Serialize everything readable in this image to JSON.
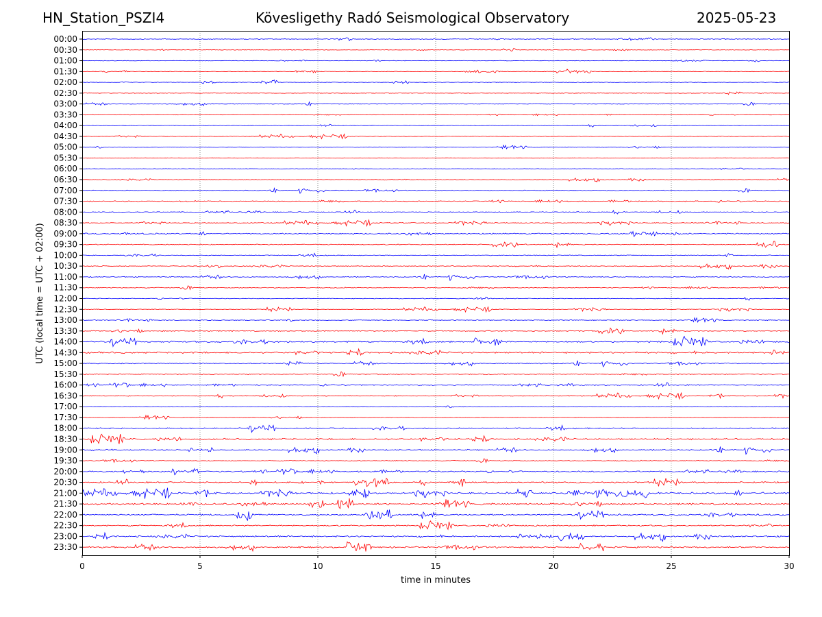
{
  "header": {
    "station": "HN_Station_PSZI4",
    "observatory": "Kövesligethy Radó Seismological Observatory",
    "date": "2025-05-23"
  },
  "chart_data": {
    "type": "line",
    "title": "Kövesligethy Radó Seismological Observatory",
    "xlabel": "time in minutes",
    "ylabel": "UTC (local time = UTC + 02:00)",
    "xlim": [
      0,
      30
    ],
    "xticks": [
      "0",
      "5",
      "10",
      "15",
      "20",
      "25",
      "30"
    ],
    "grid": "vertical dotted lines at 5-minute intervals",
    "series_colors": [
      "#0000ff",
      "#ff0000"
    ],
    "rows": [
      {
        "label": "00:00",
        "color": "#0000ff",
        "activity": 0.15
      },
      {
        "label": "00:30",
        "color": "#ff0000",
        "activity": 0.05
      },
      {
        "label": "01:00",
        "color": "#0000ff",
        "activity": 0.05
      },
      {
        "label": "01:30",
        "color": "#ff0000",
        "activity": 0.05
      },
      {
        "label": "02:00",
        "color": "#0000ff",
        "activity": 0.05
      },
      {
        "label": "02:30",
        "color": "#ff0000",
        "activity": 0.07
      },
      {
        "label": "03:00",
        "color": "#0000ff",
        "activity": 0.06
      },
      {
        "label": "03:30",
        "color": "#ff0000",
        "activity": 0.05
      },
      {
        "label": "04:00",
        "color": "#0000ff",
        "activity": 0.06
      },
      {
        "label": "04:30",
        "color": "#ff0000",
        "activity": 0.08
      },
      {
        "label": "05:00",
        "color": "#0000ff",
        "activity": 0.08
      },
      {
        "label": "05:30",
        "color": "#ff0000",
        "activity": 0.05
      },
      {
        "label": "06:00",
        "color": "#0000ff",
        "activity": 0.06
      },
      {
        "label": "06:30",
        "color": "#ff0000",
        "activity": 0.07
      },
      {
        "label": "07:00",
        "color": "#0000ff",
        "activity": 0.12
      },
      {
        "label": "07:30",
        "color": "#ff0000",
        "activity": 0.25
      },
      {
        "label": "08:00",
        "color": "#0000ff",
        "activity": 0.2
      },
      {
        "label": "08:30",
        "color": "#ff0000",
        "activity": 0.18
      },
      {
        "label": "09:00",
        "color": "#0000ff",
        "activity": 0.3
      },
      {
        "label": "09:30",
        "color": "#ff0000",
        "activity": 0.2
      },
      {
        "label": "10:00",
        "color": "#0000ff",
        "activity": 0.15
      },
      {
        "label": "10:30",
        "color": "#ff0000",
        "activity": 0.2
      },
      {
        "label": "11:00",
        "color": "#0000ff",
        "activity": 0.2
      },
      {
        "label": "11:30",
        "color": "#ff0000",
        "activity": 0.15
      },
      {
        "label": "12:00",
        "color": "#0000ff",
        "activity": 0.12
      },
      {
        "label": "12:30",
        "color": "#ff0000",
        "activity": 0.12
      },
      {
        "label": "13:00",
        "color": "#0000ff",
        "activity": 0.15
      },
      {
        "label": "13:30",
        "color": "#ff0000",
        "activity": 0.25
      },
      {
        "label": "14:00",
        "color": "#0000ff",
        "activity": 0.45
      },
      {
        "label": "14:30",
        "color": "#ff0000",
        "activity": 0.5
      },
      {
        "label": "15:00",
        "color": "#0000ff",
        "activity": 0.2
      },
      {
        "label": "15:30",
        "color": "#ff0000",
        "activity": 0.2
      },
      {
        "label": "16:00",
        "color": "#0000ff",
        "activity": 0.3
      },
      {
        "label": "16:30",
        "color": "#ff0000",
        "activity": 0.2
      },
      {
        "label": "17:00",
        "color": "#0000ff",
        "activity": 0.12
      },
      {
        "label": "17:30",
        "color": "#ff0000",
        "activity": 0.1
      },
      {
        "label": "18:00",
        "color": "#0000ff",
        "activity": 0.35
      },
      {
        "label": "18:30",
        "color": "#ff0000",
        "activity": 0.45
      },
      {
        "label": "19:00",
        "color": "#0000ff",
        "activity": 0.3
      },
      {
        "label": "19:30",
        "color": "#ff0000",
        "activity": 0.15
      },
      {
        "label": "20:00",
        "color": "#0000ff",
        "activity": 0.4
      },
      {
        "label": "20:30",
        "color": "#ff0000",
        "activity": 0.45
      },
      {
        "label": "21:00",
        "color": "#0000ff",
        "activity": 0.55
      },
      {
        "label": "21:30",
        "color": "#ff0000",
        "activity": 0.5
      },
      {
        "label": "22:00",
        "color": "#0000ff",
        "activity": 0.45
      },
      {
        "label": "22:30",
        "color": "#ff0000",
        "activity": 0.35
      },
      {
        "label": "23:00",
        "color": "#0000ff",
        "activity": 0.45
      },
      {
        "label": "23:30",
        "color": "#ff0000",
        "activity": 0.45
      }
    ]
  }
}
